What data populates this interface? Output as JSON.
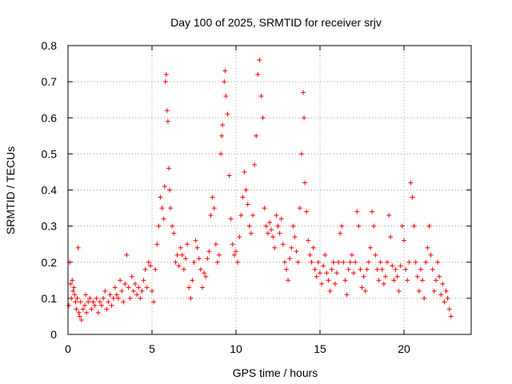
{
  "chart_data": {
    "type": "scatter",
    "title": "Day 100 of 2025, SRMTID for receiver srjv",
    "xlabel": "GPS time / hours",
    "ylabel": "SRMTID / TECUs",
    "xlim": [
      0,
      24
    ],
    "ylim": [
      0,
      0.8
    ],
    "xticks": [
      0,
      5,
      10,
      15,
      20
    ],
    "yticks": [
      0,
      0.1,
      0.2,
      0.3,
      0.4,
      0.5,
      0.6,
      0.7,
      0.8
    ],
    "xtick_labels": [
      "0",
      "5",
      "10",
      "15",
      "20"
    ],
    "ytick_labels": [
      "0",
      "0.1",
      "0.2",
      "0.3",
      "0.4",
      "0.5",
      "0.6",
      "0.7",
      "0.8"
    ],
    "grid": true,
    "marker": "+",
    "color": "#ff0000",
    "series": [
      {
        "name": "SRMTID",
        "points": [
          [
            0.05,
            0.08
          ],
          [
            0.1,
            0.2
          ],
          [
            0.15,
            0.14
          ],
          [
            0.2,
            0.1
          ],
          [
            0.25,
            0.15
          ],
          [
            0.3,
            0.12
          ],
          [
            0.35,
            0.13
          ],
          [
            0.4,
            0.11
          ],
          [
            0.45,
            0.09
          ],
          [
            0.5,
            0.07
          ],
          [
            0.55,
            0.1
          ],
          [
            0.6,
            0.24
          ],
          [
            0.65,
            0.06
          ],
          [
            0.7,
            0.05
          ],
          [
            0.75,
            0.09
          ],
          [
            0.8,
            0.04
          ],
          [
            0.9,
            0.07
          ],
          [
            1.0,
            0.08
          ],
          [
            1.05,
            0.11
          ],
          [
            1.1,
            0.06
          ],
          [
            1.2,
            0.09
          ],
          [
            1.3,
            0.1
          ],
          [
            1.4,
            0.07
          ],
          [
            1.5,
            0.09
          ],
          [
            1.6,
            0.08
          ],
          [
            1.7,
            0.1
          ],
          [
            1.8,
            0.06
          ],
          [
            1.9,
            0.09
          ],
          [
            2.0,
            0.08
          ],
          [
            2.1,
            0.1
          ],
          [
            2.2,
            0.12
          ],
          [
            2.3,
            0.07
          ],
          [
            2.4,
            0.09
          ],
          [
            2.5,
            0.11
          ],
          [
            2.6,
            0.08
          ],
          [
            2.7,
            0.1
          ],
          [
            2.8,
            0.13
          ],
          [
            2.9,
            0.11
          ],
          [
            3.0,
            0.1
          ],
          [
            3.1,
            0.15
          ],
          [
            3.2,
            0.12
          ],
          [
            3.3,
            0.09
          ],
          [
            3.4,
            0.14
          ],
          [
            3.5,
            0.22
          ],
          [
            3.6,
            0.13
          ],
          [
            3.7,
            0.1
          ],
          [
            3.8,
            0.16
          ],
          [
            3.9,
            0.12
          ],
          [
            4.0,
            0.14
          ],
          [
            4.1,
            0.11
          ],
          [
            4.2,
            0.13
          ],
          [
            4.3,
            0.1
          ],
          [
            4.4,
            0.12
          ],
          [
            4.5,
            0.15
          ],
          [
            4.6,
            0.18
          ],
          [
            4.7,
            0.13
          ],
          [
            4.8,
            0.2
          ],
          [
            4.9,
            0.19
          ],
          [
            5.0,
            0.12
          ],
          [
            5.1,
            0.09
          ],
          [
            5.2,
            0.18
          ],
          [
            5.3,
            0.25
          ],
          [
            5.4,
            0.3
          ],
          [
            5.5,
            0.38
          ],
          [
            5.6,
            0.35
          ],
          [
            5.7,
            0.32
          ],
          [
            5.75,
            0.41
          ],
          [
            5.8,
            0.7
          ],
          [
            5.85,
            0.72
          ],
          [
            5.9,
            0.62
          ],
          [
            5.95,
            0.59
          ],
          [
            6.0,
            0.46
          ],
          [
            6.05,
            0.4
          ],
          [
            6.1,
            0.35
          ],
          [
            6.2,
            0.3
          ],
          [
            6.3,
            0.28
          ],
          [
            6.4,
            0.2
          ],
          [
            6.5,
            0.22
          ],
          [
            6.6,
            0.19
          ],
          [
            6.7,
            0.24
          ],
          [
            6.8,
            0.22
          ],
          [
            6.9,
            0.18
          ],
          [
            7.0,
            0.21
          ],
          [
            7.1,
            0.25
          ],
          [
            7.2,
            0.13
          ],
          [
            7.3,
            0.1
          ],
          [
            7.4,
            0.15
          ],
          [
            7.5,
            0.2
          ],
          [
            7.6,
            0.26
          ],
          [
            7.7,
            0.24
          ],
          [
            7.8,
            0.21
          ],
          [
            7.9,
            0.18
          ],
          [
            8.0,
            0.13
          ],
          [
            8.1,
            0.17
          ],
          [
            8.2,
            0.16
          ],
          [
            8.3,
            0.21
          ],
          [
            8.4,
            0.23
          ],
          [
            8.5,
            0.33
          ],
          [
            8.6,
            0.38
          ],
          [
            8.7,
            0.35
          ],
          [
            8.8,
            0.25
          ],
          [
            8.9,
            0.2
          ],
          [
            9.0,
            0.22
          ],
          [
            9.1,
            0.5
          ],
          [
            9.15,
            0.55
          ],
          [
            9.2,
            0.58
          ],
          [
            9.3,
            0.7
          ],
          [
            9.35,
            0.73
          ],
          [
            9.4,
            0.66
          ],
          [
            9.5,
            0.61
          ],
          [
            9.6,
            0.44
          ],
          [
            9.7,
            0.32
          ],
          [
            9.8,
            0.25
          ],
          [
            9.9,
            0.22
          ],
          [
            10.0,
            0.23
          ],
          [
            10.1,
            0.2
          ],
          [
            10.2,
            0.27
          ],
          [
            10.3,
            0.33
          ],
          [
            10.4,
            0.38
          ],
          [
            10.5,
            0.45
          ],
          [
            10.6,
            0.4
          ],
          [
            10.7,
            0.36
          ],
          [
            10.8,
            0.3
          ],
          [
            10.9,
            0.28
          ],
          [
            11.0,
            0.33
          ],
          [
            11.1,
            0.47
          ],
          [
            11.2,
            0.55
          ],
          [
            11.3,
            0.72
          ],
          [
            11.4,
            0.76
          ],
          [
            11.5,
            0.66
          ],
          [
            11.6,
            0.6
          ],
          [
            11.7,
            0.35
          ],
          [
            11.8,
            0.3
          ],
          [
            11.9,
            0.28
          ],
          [
            12.0,
            0.31
          ],
          [
            12.1,
            0.29
          ],
          [
            12.2,
            0.27
          ],
          [
            12.3,
            0.24
          ],
          [
            12.4,
            0.33
          ],
          [
            12.5,
            0.3
          ],
          [
            12.6,
            0.28
          ],
          [
            12.7,
            0.32
          ],
          [
            12.8,
            0.25
          ],
          [
            12.9,
            0.2
          ],
          [
            13.0,
            0.18
          ],
          [
            13.1,
            0.15
          ],
          [
            13.2,
            0.21
          ],
          [
            13.3,
            0.24
          ],
          [
            13.4,
            0.3
          ],
          [
            13.5,
            0.27
          ],
          [
            13.6,
            0.23
          ],
          [
            13.7,
            0.2
          ],
          [
            13.8,
            0.35
          ],
          [
            13.9,
            0.5
          ],
          [
            14.0,
            0.67
          ],
          [
            14.05,
            0.6
          ],
          [
            14.1,
            0.42
          ],
          [
            14.2,
            0.34
          ],
          [
            14.3,
            0.26
          ],
          [
            14.4,
            0.22
          ],
          [
            14.5,
            0.2
          ],
          [
            14.6,
            0.24
          ],
          [
            14.7,
            0.18
          ],
          [
            14.8,
            0.16
          ],
          [
            14.9,
            0.2
          ],
          [
            15.0,
            0.17
          ],
          [
            15.1,
            0.14
          ],
          [
            15.2,
            0.19
          ],
          [
            15.3,
            0.22
          ],
          [
            15.4,
            0.17
          ],
          [
            15.5,
            0.15
          ],
          [
            15.6,
            0.12
          ],
          [
            15.7,
            0.18
          ],
          [
            15.8,
            0.2
          ],
          [
            15.9,
            0.14
          ],
          [
            16.0,
            0.17
          ],
          [
            16.1,
            0.2
          ],
          [
            16.2,
            0.28
          ],
          [
            16.3,
            0.3
          ],
          [
            16.4,
            0.2
          ],
          [
            16.5,
            0.15
          ],
          [
            16.6,
            0.11
          ],
          [
            16.7,
            0.18
          ],
          [
            16.8,
            0.2
          ],
          [
            16.9,
            0.22
          ],
          [
            17.0,
            0.17
          ],
          [
            17.1,
            0.2
          ],
          [
            17.2,
            0.34
          ],
          [
            17.3,
            0.3
          ],
          [
            17.4,
            0.18
          ],
          [
            17.5,
            0.13
          ],
          [
            17.6,
            0.16
          ],
          [
            17.7,
            0.12
          ],
          [
            17.8,
            0.18
          ],
          [
            17.9,
            0.2
          ],
          [
            18.0,
            0.24
          ],
          [
            18.1,
            0.34
          ],
          [
            18.2,
            0.3
          ],
          [
            18.3,
            0.22
          ],
          [
            18.4,
            0.18
          ],
          [
            18.5,
            0.15
          ],
          [
            18.6,
            0.2
          ],
          [
            18.7,
            0.18
          ],
          [
            18.8,
            0.14
          ],
          [
            18.9,
            0.16
          ],
          [
            19.0,
            0.2
          ],
          [
            19.1,
            0.33
          ],
          [
            19.2,
            0.27
          ],
          [
            19.3,
            0.19
          ],
          [
            19.4,
            0.15
          ],
          [
            19.5,
            0.18
          ],
          [
            19.6,
            0.16
          ],
          [
            19.7,
            0.12
          ],
          [
            19.8,
            0.19
          ],
          [
            19.9,
            0.3
          ],
          [
            20.0,
            0.26
          ],
          [
            20.1,
            0.18
          ],
          [
            20.2,
            0.15
          ],
          [
            20.3,
            0.2
          ],
          [
            20.4,
            0.42
          ],
          [
            20.5,
            0.38
          ],
          [
            20.6,
            0.3
          ],
          [
            20.7,
            0.2
          ],
          [
            20.8,
            0.16
          ],
          [
            20.9,
            0.12
          ],
          [
            21.0,
            0.18
          ],
          [
            21.1,
            0.15
          ],
          [
            21.2,
            0.1
          ],
          [
            21.3,
            0.2
          ],
          [
            21.4,
            0.24
          ],
          [
            21.5,
            0.3
          ],
          [
            21.6,
            0.22
          ],
          [
            21.7,
            0.18
          ],
          [
            21.8,
            0.12
          ],
          [
            21.9,
            0.15
          ],
          [
            22.0,
            0.2
          ],
          [
            22.1,
            0.16
          ],
          [
            22.2,
            0.11
          ],
          [
            22.3,
            0.14
          ],
          [
            22.4,
            0.09
          ],
          [
            22.5,
            0.12
          ],
          [
            22.6,
            0.1
          ],
          [
            22.7,
            0.07
          ],
          [
            22.8,
            0.05
          ]
        ]
      }
    ]
  }
}
